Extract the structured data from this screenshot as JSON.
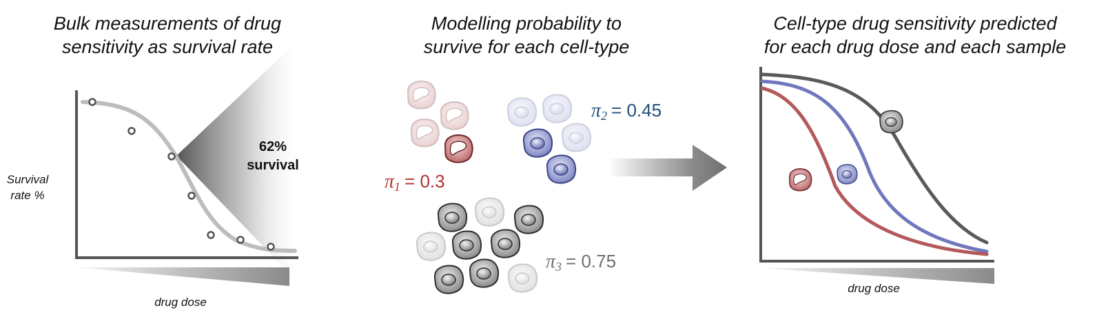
{
  "panels": {
    "bulk": {
      "title_line1": "Bulk measurements of drug",
      "title_line2": "sensitivity as survival rate",
      "ylabel_line1": "Survival",
      "ylabel_line2": "rate %",
      "xlabel": "drug dose",
      "callout_value": "62%",
      "callout_text": "survival"
    },
    "model": {
      "title_line1": "Modelling probability to",
      "title_line2": "survive for each cell-type",
      "params": [
        {
          "symbol": "π",
          "subscript": "1",
          "equals": "= 0.3",
          "color": "#b5312e"
        },
        {
          "symbol": "π",
          "subscript": "2",
          "equals": "= 0.45",
          "color": "#1f4e79"
        },
        {
          "symbol": "π",
          "subscript": "3",
          "equals": "= 0.75",
          "color": "#6f6f6f"
        }
      ]
    },
    "predicted": {
      "title_line1": "Cell-type drug sensitivity predicted",
      "title_line2": "for each drug dose and each sample",
      "xlabel": "drug dose"
    }
  },
  "colors": {
    "cell_type_1": "#b4595b",
    "cell_type_2": "#6f78bd",
    "cell_type_3": "#5a5a5a",
    "fit_curve": "#bdbdbd",
    "axis": "#555555"
  }
}
